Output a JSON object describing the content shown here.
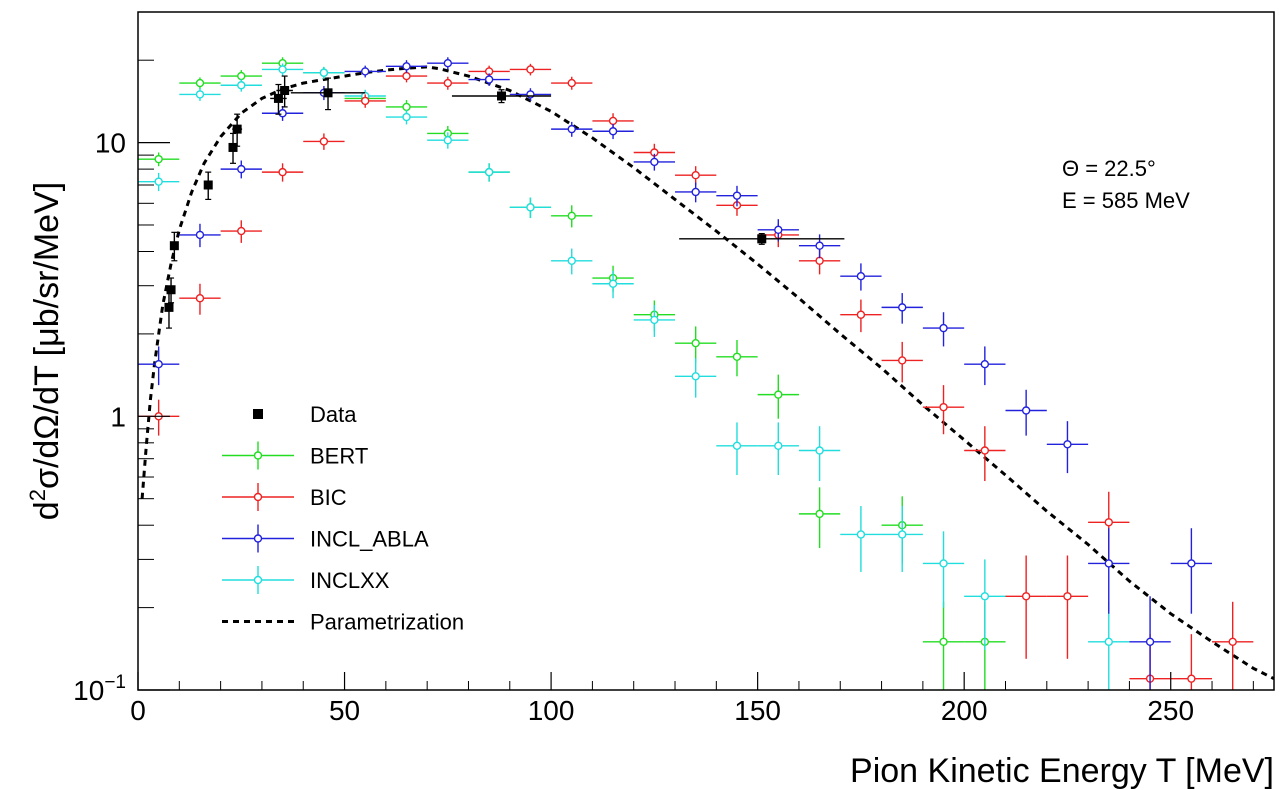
{
  "chart_data": {
    "type": "scatter",
    "xlabel": "Pion Kinetic Energy T [MeV]",
    "ylabel_parts": [
      "d",
      "2",
      "σ/dΩ/dT [μb/sr/MeV]"
    ],
    "xlim": [
      0,
      275
    ],
    "ylim": [
      0.1,
      30
    ],
    "yscale": "log",
    "grid": false,
    "legend_position": "bottom-left",
    "x_ticks": [
      0,
      50,
      100,
      150,
      200,
      250
    ],
    "y_ticks": [
      {
        "value": 10,
        "label": "10"
      },
      {
        "value": 1,
        "label": "1"
      },
      {
        "value": 0.1,
        "label": "10",
        "sup": "−1"
      }
    ],
    "annotations": [
      "Θ = 22.5°",
      "E = 585 MeV"
    ],
    "series": [
      {
        "name": "Data",
        "color": "#000000",
        "marker": "square",
        "points": [
          [
            7.5,
            2.5,
            0.5,
            0.4
          ],
          [
            8,
            2.9,
            0.5,
            0.3
          ],
          [
            8.8,
            4.2,
            0.6,
            0.5
          ],
          [
            17,
            7.0,
            1,
            0.8
          ],
          [
            23,
            9.6,
            1,
            1.2
          ],
          [
            24,
            11.2,
            1.2,
            1.5
          ],
          [
            34,
            14.5,
            2,
            1.8
          ],
          [
            35.5,
            15.5,
            2,
            2.0
          ],
          [
            46,
            15.2,
            9,
            2.0
          ],
          [
            88,
            14.8,
            12,
            0.8
          ],
          [
            151,
            4.45,
            20,
            0.2
          ]
        ]
      },
      {
        "name": "BERT",
        "color": "#22dd22",
        "marker": "circle",
        "points": [
          [
            5,
            8.7,
            5,
            0.5
          ],
          [
            15,
            16.5,
            5,
            0.8
          ],
          [
            25,
            17.5,
            5,
            0.9
          ],
          [
            35,
            19.5,
            5,
            1.0
          ],
          [
            45,
            18.0,
            5,
            0.9
          ],
          [
            55,
            14.5,
            5,
            0.8
          ],
          [
            65,
            13.5,
            5,
            0.8
          ],
          [
            75,
            10.8,
            5,
            0.7
          ],
          [
            85,
            7.8,
            5,
            0.6
          ],
          [
            95,
            5.8,
            5,
            0.5
          ],
          [
            105,
            5.4,
            5,
            0.5
          ],
          [
            115,
            3.2,
            5,
            0.35
          ],
          [
            125,
            2.35,
            5,
            0.3
          ],
          [
            135,
            1.85,
            5,
            0.28
          ],
          [
            145,
            1.65,
            5,
            0.25
          ],
          [
            155,
            1.2,
            5,
            0.22
          ],
          [
            165,
            0.44,
            5,
            0.11
          ],
          [
            185,
            0.4,
            5,
            0.11
          ],
          [
            195,
            0.15,
            5,
            0.06
          ],
          [
            205,
            0.15,
            5,
            0.06
          ]
        ]
      },
      {
        "name": "BIC",
        "color": "#ee2222",
        "marker": "circle",
        "points": [
          [
            5,
            1.0,
            5,
            0.15
          ],
          [
            15,
            2.7,
            5,
            0.35
          ],
          [
            25,
            4.75,
            5,
            0.45
          ],
          [
            35,
            7.8,
            5,
            0.6
          ],
          [
            45,
            10.1,
            5,
            0.7
          ],
          [
            55,
            14.2,
            5,
            0.8
          ],
          [
            65,
            17.5,
            5,
            0.9
          ],
          [
            75,
            16.5,
            5,
            0.9
          ],
          [
            85,
            18.2,
            5,
            0.9
          ],
          [
            95,
            18.5,
            5,
            0.9
          ],
          [
            105,
            16.5,
            5,
            0.9
          ],
          [
            115,
            12.0,
            5,
            0.8
          ],
          [
            125,
            9.2,
            5,
            0.7
          ],
          [
            135,
            7.6,
            5,
            0.6
          ],
          [
            145,
            5.9,
            5,
            0.5
          ],
          [
            155,
            4.6,
            5,
            0.45
          ],
          [
            165,
            3.7,
            5,
            0.4
          ],
          [
            175,
            2.35,
            5,
            0.32
          ],
          [
            185,
            1.6,
            5,
            0.27
          ],
          [
            195,
            1.08,
            5,
            0.22
          ],
          [
            205,
            0.75,
            5,
            0.17
          ],
          [
            215,
            0.22,
            5,
            0.09
          ],
          [
            225,
            0.22,
            5,
            0.09
          ],
          [
            235,
            0.41,
            5,
            0.12
          ],
          [
            245,
            0.11,
            5,
            0.05
          ],
          [
            255,
            0.11,
            5,
            0.05
          ],
          [
            265,
            0.15,
            5,
            0.06
          ]
        ]
      },
      {
        "name": "INCL_ABLA",
        "color": "#2222dd",
        "marker": "circle",
        "points": [
          [
            5,
            1.55,
            5,
            0.25
          ],
          [
            15,
            4.6,
            5,
            0.45
          ],
          [
            25,
            8.0,
            5,
            0.6
          ],
          [
            35,
            12.8,
            5,
            0.8
          ],
          [
            45,
            15.2,
            5,
            0.9
          ],
          [
            55,
            18.2,
            5,
            0.9
          ],
          [
            65,
            19.0,
            5,
            1.0
          ],
          [
            75,
            19.5,
            5,
            1.0
          ],
          [
            85,
            17.0,
            5,
            0.9
          ],
          [
            95,
            15.0,
            5,
            0.8
          ],
          [
            105,
            11.2,
            5,
            0.7
          ],
          [
            115,
            11.0,
            5,
            0.7
          ],
          [
            125,
            8.5,
            5,
            0.6
          ],
          [
            135,
            6.6,
            5,
            0.55
          ],
          [
            145,
            6.4,
            5,
            0.55
          ],
          [
            155,
            4.8,
            5,
            0.45
          ],
          [
            165,
            4.2,
            5,
            0.42
          ],
          [
            175,
            3.25,
            5,
            0.37
          ],
          [
            185,
            2.5,
            5,
            0.32
          ],
          [
            195,
            2.1,
            5,
            0.3
          ],
          [
            205,
            1.55,
            5,
            0.25
          ],
          [
            215,
            1.05,
            5,
            0.2
          ],
          [
            225,
            0.79,
            5,
            0.17
          ],
          [
            235,
            0.29,
            5,
            0.1
          ],
          [
            245,
            0.15,
            5,
            0.07
          ],
          [
            255,
            0.29,
            5,
            0.1
          ]
        ]
      },
      {
        "name": "INCLXX",
        "color": "#22dddd",
        "marker": "circle",
        "points": [
          [
            5,
            7.2,
            5,
            0.55
          ],
          [
            15,
            15.0,
            5,
            0.8
          ],
          [
            25,
            16.2,
            5,
            0.85
          ],
          [
            35,
            18.5,
            5,
            0.95
          ],
          [
            45,
            18.0,
            5,
            0.9
          ],
          [
            55,
            14.8,
            5,
            0.8
          ],
          [
            65,
            12.4,
            5,
            0.75
          ],
          [
            75,
            10.2,
            5,
            0.7
          ],
          [
            85,
            7.8,
            5,
            0.6
          ],
          [
            95,
            5.8,
            5,
            0.5
          ],
          [
            105,
            3.7,
            5,
            0.4
          ],
          [
            115,
            3.05,
            5,
            0.35
          ],
          [
            125,
            2.25,
            5,
            0.3
          ],
          [
            135,
            1.4,
            5,
            0.23
          ],
          [
            145,
            0.78,
            5,
            0.17
          ],
          [
            155,
            0.78,
            5,
            0.17
          ],
          [
            165,
            0.75,
            5,
            0.17
          ],
          [
            175,
            0.37,
            5,
            0.1
          ],
          [
            185,
            0.37,
            5,
            0.1
          ],
          [
            195,
            0.29,
            5,
            0.09
          ],
          [
            205,
            0.22,
            5,
            0.08
          ],
          [
            235,
            0.15,
            5,
            0.06
          ]
        ]
      },
      {
        "name": "Parametrization",
        "color": "#000000",
        "marker": "line",
        "dashed": true,
        "points": [
          [
            1,
            0.5
          ],
          [
            2,
            0.78
          ],
          [
            3,
            1.15
          ],
          [
            4,
            1.55
          ],
          [
            5,
            2.0
          ],
          [
            6,
            2.55
          ],
          [
            8,
            3.6
          ],
          [
            10,
            4.8
          ],
          [
            13,
            6.6
          ],
          [
            16,
            8.4
          ],
          [
            20,
            10.5
          ],
          [
            25,
            12.8
          ],
          [
            30,
            14.5
          ],
          [
            35,
            15.7
          ],
          [
            40,
            16.5
          ],
          [
            45,
            17.0
          ],
          [
            50,
            17.5
          ],
          [
            55,
            18.0
          ],
          [
            60,
            18.4
          ],
          [
            65,
            18.7
          ],
          [
            70,
            18.9
          ],
          [
            73,
            18.6
          ],
          [
            80,
            17.5
          ],
          [
            90,
            15.5
          ],
          [
            100,
            13.0
          ],
          [
            110,
            10.4
          ],
          [
            120,
            8.1
          ],
          [
            130,
            6.2
          ],
          [
            140,
            4.75
          ],
          [
            150,
            3.6
          ],
          [
            160,
            2.7
          ],
          [
            170,
            2.0
          ],
          [
            180,
            1.5
          ],
          [
            190,
            1.1
          ],
          [
            200,
            0.82
          ],
          [
            210,
            0.61
          ],
          [
            220,
            0.45
          ],
          [
            230,
            0.34
          ],
          [
            240,
            0.25
          ],
          [
            250,
            0.19
          ],
          [
            260,
            0.15
          ],
          [
            270,
            0.12
          ],
          [
            275,
            0.11
          ]
        ]
      }
    ]
  }
}
